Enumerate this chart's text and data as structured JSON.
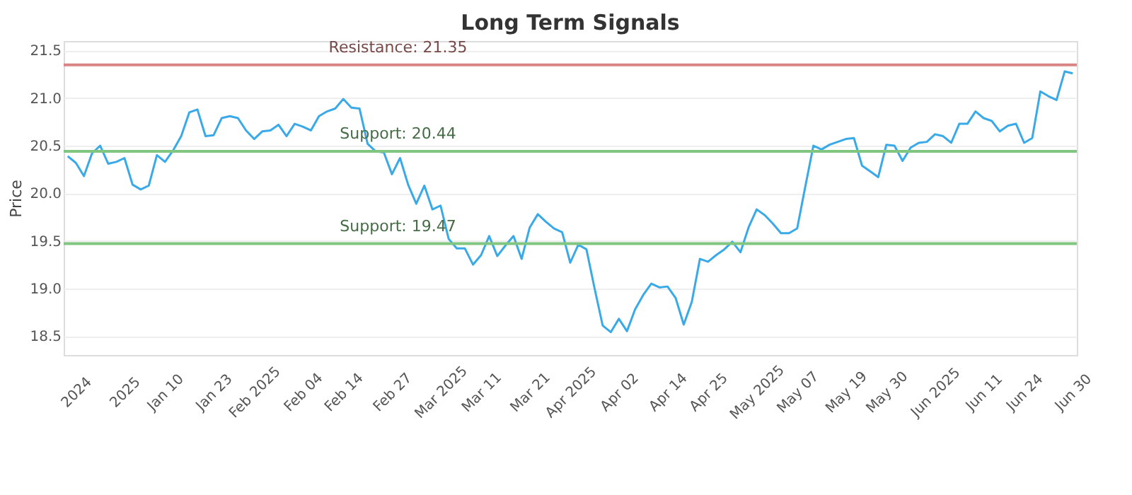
{
  "chart_data": {
    "type": "line",
    "title": "Long Term Signals",
    "ylabel": "Price",
    "categories": [
      null,
      "2024",
      null,
      null,
      null,
      null,
      null,
      "2025",
      null,
      null,
      null,
      null,
      "Jan 10",
      null,
      null,
      null,
      null,
      null,
      "Jan 23",
      null,
      null,
      null,
      null,
      "Feb 2025",
      null,
      null,
      null,
      null,
      null,
      "Feb 04",
      null,
      null,
      null,
      null,
      "Feb 14",
      null,
      null,
      null,
      null,
      null,
      "Feb 27",
      null,
      null,
      null,
      null,
      null,
      "Mar 2025",
      null,
      null,
      null,
      null,
      "Mar 11",
      null,
      null,
      null,
      null,
      null,
      "Mar 21",
      null,
      null,
      null,
      null,
      "Apr 2025",
      null,
      null,
      null,
      null,
      null,
      "Apr 02",
      null,
      null,
      null,
      null,
      null,
      "Apr 14",
      null,
      null,
      null,
      null,
      "Apr 25",
      null,
      null,
      null,
      null,
      null,
      "May 2025",
      null,
      null,
      null,
      null,
      "May 07",
      null,
      null,
      null,
      null,
      null,
      "May 19",
      null,
      null,
      null,
      null,
      "May 30",
      null,
      null,
      null,
      null,
      null,
      "Jun 2025",
      null,
      null,
      null,
      null,
      null,
      "Jun 11",
      null,
      null,
      null,
      null,
      "Jun 24",
      null,
      null,
      null,
      null,
      null,
      "Jun 30"
    ],
    "series": [
      {
        "color": "#3aa9e8",
        "values": [
          20.39,
          20.32,
          20.18,
          20.42,
          20.5,
          20.31,
          20.33,
          20.37,
          20.09,
          20.04,
          20.08,
          20.4,
          20.33,
          20.45,
          20.6,
          20.85,
          20.88,
          20.6,
          20.61,
          20.79,
          20.81,
          20.79,
          20.66,
          20.57,
          20.65,
          20.66,
          20.72,
          20.6,
          20.73,
          20.7,
          20.66,
          20.81,
          20.86,
          20.89,
          20.99,
          20.9,
          20.89,
          20.52,
          20.44,
          20.43,
          20.2,
          20.37,
          20.09,
          19.89,
          20.08,
          19.83,
          19.87,
          19.52,
          19.42,
          19.42,
          19.25,
          19.35,
          19.55,
          19.34,
          19.45,
          19.55,
          19.31,
          19.64,
          19.78,
          19.7,
          19.63,
          19.59,
          19.27,
          19.46,
          19.41,
          19.0,
          18.61,
          18.54,
          18.68,
          18.55,
          18.78,
          18.93,
          19.05,
          19.01,
          19.02,
          18.9,
          18.62,
          18.86,
          19.31,
          19.28,
          19.35,
          19.41,
          19.49,
          19.38,
          19.64,
          19.83,
          19.77,
          19.68,
          19.58,
          19.58,
          19.63,
          20.07,
          20.5,
          20.46,
          20.51,
          20.54,
          20.57,
          20.58,
          20.29,
          20.23,
          20.17,
          20.51,
          20.5,
          20.34,
          20.48,
          20.53,
          20.54,
          20.62,
          20.6,
          20.53,
          20.73,
          20.73,
          20.86,
          20.79,
          20.76,
          20.65,
          20.71,
          20.73,
          20.53,
          20.58,
          21.07,
          21.02,
          20.98,
          21.28,
          21.26
        ]
      }
    ],
    "ylim": [
      18.3,
      21.6
    ],
    "yticks": [
      18.5,
      {
        "value": 19,
        "label": "19.0"
      },
      19.5,
      {
        "value": 20,
        "label": "20.0"
      },
      20.5,
      {
        "value": 21,
        "label": "21.0"
      },
      21.5
    ],
    "grid": "y",
    "legend": false,
    "marker": "none",
    "line_style": "solid",
    "ref_lines": [
      {
        "axis": "y",
        "value": 21.35,
        "label": "Resistance: 21.35",
        "color": "#d98585"
      },
      {
        "axis": "y",
        "value": 20.44,
        "label": "Support: 20.44",
        "color": "#80c680"
      },
      {
        "axis": "y",
        "value": 19.47,
        "label": "Support: 19.47",
        "color": "#80c680"
      }
    ]
  }
}
